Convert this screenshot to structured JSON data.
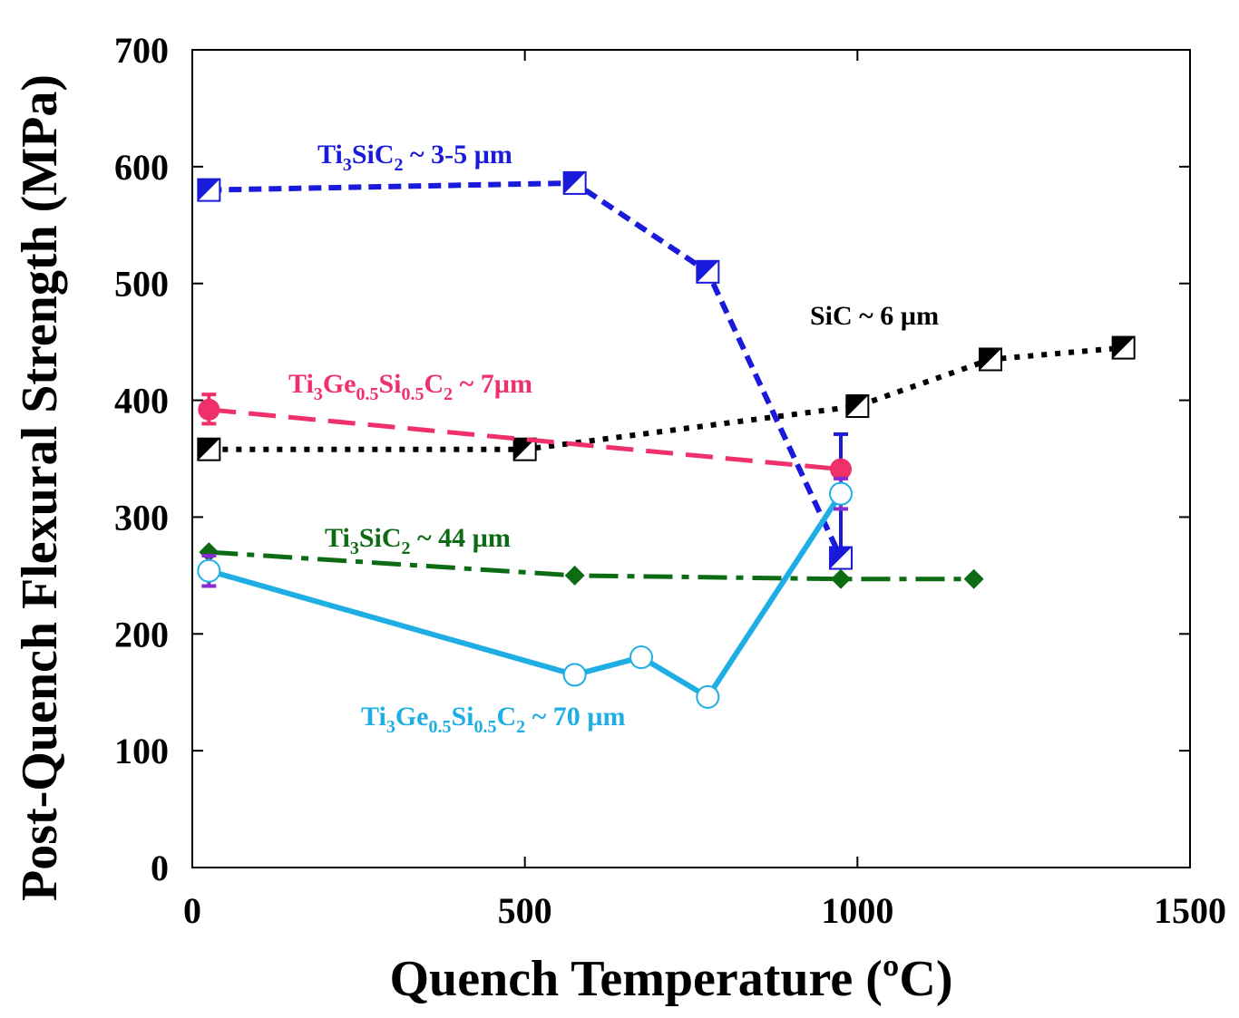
{
  "chart_data": {
    "type": "line",
    "xlabel": "Quench Temperature (ºC)",
    "ylabel": "Post-Quench Flexural Strength (MPa)",
    "xlim": [
      0,
      1500
    ],
    "ylim": [
      0,
      700
    ],
    "x_ticks": [
      "0",
      "500",
      "1000",
      "1500"
    ],
    "y_ticks": [
      "0",
      "100",
      "200",
      "300",
      "400",
      "500",
      "600",
      "700"
    ],
    "grid": false,
    "series": [
      {
        "label_parts": [
          {
            "t": "Ti",
            "sub": false
          },
          {
            "t": "3",
            "sub": true
          },
          {
            "t": "SiC",
            "sub": false
          },
          {
            "t": "2",
            "sub": true
          },
          {
            "t": " ~ 3-5 µm",
            "sub": false
          }
        ],
        "color": "#1a1adb",
        "line_style": "short-dash",
        "marker": "half-filled-square",
        "points": [
          [
            25,
            580
          ],
          [
            575,
            586
          ],
          [
            775,
            510
          ],
          [
            975,
            265
          ]
        ],
        "error_bars": [
          [
            975,
            265,
            371
          ]
        ]
      },
      {
        "label_parts": [
          {
            "t": "SiC ~ 6 µm",
            "sub": false
          }
        ],
        "color": "#000000",
        "line_style": "dotted",
        "marker": "half-filled-square",
        "points": [
          [
            25,
            358
          ],
          [
            500,
            358
          ],
          [
            1000,
            395
          ],
          [
            1200,
            435
          ],
          [
            1400,
            445
          ]
        ]
      },
      {
        "label_parts": [
          {
            "t": "Ti",
            "sub": false
          },
          {
            "t": "3",
            "sub": true
          },
          {
            "t": "Ge",
            "sub": false
          },
          {
            "t": "0.5",
            "sub": true
          },
          {
            "t": "Si",
            "sub": false
          },
          {
            "t": "0.5",
            "sub": true
          },
          {
            "t": "C",
            "sub": false
          },
          {
            "t": "2",
            "sub": true
          },
          {
            "t": " ~ 7µm",
            "sub": false
          }
        ],
        "color": "#f0306a",
        "line_style": "long-dash",
        "marker": "filled-circle",
        "points": [
          [
            25,
            392
          ],
          [
            975,
            341
          ]
        ],
        "error_bars": [
          [
            25,
            380,
            405
          ]
        ]
      },
      {
        "label_parts": [
          {
            "t": "Ti",
            "sub": false
          },
          {
            "t": "3",
            "sub": true
          },
          {
            "t": "SiC",
            "sub": false
          },
          {
            "t": "2",
            "sub": true
          },
          {
            "t": " ~ 44 µm",
            "sub": false
          }
        ],
        "color": "#0d6b14",
        "line_style": "dash-dot",
        "marker": "filled-diamond",
        "points": [
          [
            25,
            270
          ],
          [
            575,
            250
          ],
          [
            975,
            247
          ],
          [
            1175,
            247
          ]
        ]
      },
      {
        "label_parts": [
          {
            "t": "Ti",
            "sub": false
          },
          {
            "t": "3",
            "sub": true
          },
          {
            "t": "Ge",
            "sub": false
          },
          {
            "t": "0.5",
            "sub": true
          },
          {
            "t": "Si",
            "sub": false
          },
          {
            "t": "0.5",
            "sub": true
          },
          {
            "t": "C",
            "sub": false
          },
          {
            "t": "2",
            "sub": true
          },
          {
            "t": " ~ 70 µm",
            "sub": false
          }
        ],
        "color": "#1eaee4",
        "line_style": "solid",
        "marker": "open-circle",
        "points": [
          [
            25,
            254
          ],
          [
            575,
            165
          ],
          [
            675,
            180
          ],
          [
            775,
            146
          ],
          [
            975,
            320
          ]
        ],
        "error_bars": [
          [
            25,
            241,
            267
          ],
          [
            975,
            307,
            333
          ]
        ],
        "error_color": "#8a2ad1"
      }
    ]
  }
}
